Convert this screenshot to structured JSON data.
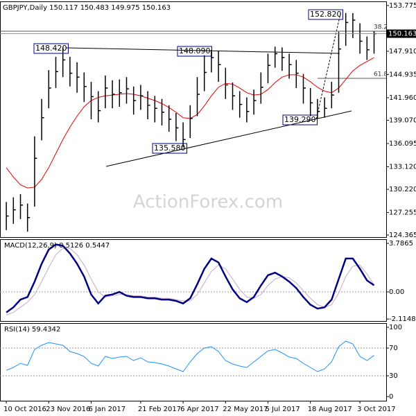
{
  "watermark": "ActionForex.com",
  "chart_data": [
    {
      "type": "ohlc",
      "title": "GBPJPY,Daily  150.117 150.483 149.975 150.163",
      "color": "#000000",
      "categories": [
        "10 Oct 2016",
        null,
        null,
        null,
        null,
        null,
        "23 Nov 2016",
        null,
        null,
        null,
        null,
        null,
        "6 Jan 2017",
        null,
        null,
        null,
        null,
        null,
        null,
        "21 Feb 2017",
        null,
        null,
        null,
        null,
        null,
        "6 Apr 2017",
        null,
        null,
        null,
        null,
        null,
        "22 May 2017",
        null,
        null,
        null,
        null,
        null,
        "5 Jul 2017",
        null,
        null,
        null,
        null,
        null,
        "18 Aug 2017",
        null,
        null,
        null,
        null,
        null,
        null,
        "3 Oct 2017",
        null,
        null
      ],
      "high": [
        128.6,
        129.2,
        129.6,
        128.4,
        137.0,
        141.8,
        145.5,
        147.2,
        148.42,
        147.2,
        146.5,
        145.2,
        144.0,
        142.8,
        144.8,
        144.2,
        144.3,
        144.6,
        143.4,
        143.6,
        142.8,
        142.2,
        141.8,
        141.0,
        140.0,
        138.8,
        141.0,
        144.6,
        147.4,
        148.09,
        148.0,
        145.8,
        143.9,
        142.8,
        142.0,
        143.0,
        145.2,
        147.6,
        148.5,
        148.4,
        147.6,
        146.8,
        145.0,
        143.2,
        141.8,
        142.0,
        144.0,
        150.4,
        152.82,
        152.8,
        151.5,
        149.8,
        150.483
      ],
      "low": [
        125.0,
        125.8,
        126.4,
        124.8,
        128.0,
        136.5,
        140.6,
        143.2,
        144.6,
        143.4,
        142.6,
        141.4,
        139.2,
        138.8,
        140.6,
        140.6,
        140.8,
        141.2,
        139.8,
        140.4,
        139.2,
        138.8,
        138.4,
        137.6,
        136.4,
        135.58,
        136.8,
        139.6,
        142.8,
        145.2,
        144.0,
        141.8,
        140.4,
        139.4,
        138.8,
        139.8,
        141.2,
        143.8,
        145.8,
        145.4,
        144.4,
        143.2,
        141.2,
        139.6,
        139.29,
        139.4,
        140.6,
        142.6,
        148.6,
        149.6,
        147.6,
        146.8,
        147.6
      ],
      "close": [
        126.8,
        127.6,
        128.2,
        126.6,
        134.2,
        139.4,
        143.2,
        145.3,
        146.8,
        145.1,
        144.6,
        143.4,
        142.1,
        140.3,
        143.2,
        142.4,
        142.6,
        143.1,
        141.6,
        142.2,
        141.0,
        140.6,
        140.1,
        139.2,
        138.1,
        136.6,
        139.3,
        142.4,
        145.2,
        147.1,
        146.2,
        143.6,
        142.2,
        141.1,
        140.2,
        141.6,
        143.3,
        146.1,
        147.6,
        147.1,
        146.2,
        145.1,
        143.2,
        141.3,
        140.2,
        140.6,
        142.3,
        148.2,
        151.6,
        151.9,
        149.2,
        148.1,
        150.163
      ],
      "ma": {
        "color": "#e00000",
        "values": [
          133.0,
          131.8,
          130.8,
          130.4,
          130.5,
          131.5,
          133.0,
          134.8,
          136.6,
          138.2,
          139.6,
          140.8,
          141.6,
          142.0,
          142.2,
          142.3,
          142.4,
          142.5,
          142.4,
          142.2,
          141.9,
          141.6,
          141.2,
          140.7,
          140.1,
          139.4,
          139.3,
          139.8,
          140.9,
          142.2,
          143.3,
          143.8,
          143.7,
          143.2,
          142.6,
          142.3,
          142.4,
          143.0,
          143.9,
          144.6,
          144.9,
          144.9,
          144.6,
          144.0,
          143.3,
          142.8,
          142.6,
          143.2,
          144.3,
          145.4,
          146.1,
          146.6,
          147.1
        ]
      },
      "ylim": [
        124.1,
        154.3
      ],
      "yticks": [
        124.365,
        127.255,
        {
          "value": 130.22,
          "label": "130.220"
        },
        {
          "value": 133.12,
          "label": "133.120"
        },
        136.095,
        {
          "value": 139.07,
          "label": "139.070"
        },
        {
          "value": 141.96,
          "label": "141.960"
        },
        144.935,
        {
          "value": 147.91,
          "label": "147.910"
        },
        153.775
      ],
      "annotations": [
        "148.420",
        "148.090",
        "135.580",
        "139.290",
        "152.820",
        "38.2",
        "61.8"
      ]
    },
    {
      "type": "macd",
      "title": "MACD(12,26,9) 0.5126 0.5447",
      "series": [
        {
          "color": "#000080",
          "values": [
            -1.6,
            -1.2,
            -0.6,
            -0.4,
            0.8,
            2.2,
            3.3,
            3.7,
            3.6,
            3.0,
            2.2,
            1.2,
            -0.2,
            -0.9,
            -0.3,
            -0.2,
            0.0,
            -0.3,
            -0.4,
            -0.4,
            -0.5,
            -0.5,
            -0.6,
            -0.6,
            -0.7,
            -0.9,
            -0.5,
            0.6,
            1.8,
            2.6,
            2.3,
            1.2,
            0.2,
            -0.5,
            -0.8,
            -0.4,
            0.5,
            1.3,
            1.5,
            1.2,
            0.8,
            0.3,
            -0.4,
            -1.0,
            -1.3,
            -1.2,
            -0.6,
            1.0,
            2.6,
            2.6,
            1.8,
            0.9,
            0.5126
          ]
        },
        {
          "color": "#c8a8c8",
          "values": [
            -1.8,
            -1.6,
            -1.2,
            -0.8,
            -0.2,
            0.8,
            1.9,
            2.9,
            3.4,
            3.4,
            2.9,
            2.1,
            1.0,
            0.0,
            -0.4,
            -0.3,
            -0.2,
            -0.2,
            -0.3,
            -0.3,
            -0.4,
            -0.4,
            -0.5,
            -0.5,
            -0.6,
            -0.7,
            -0.7,
            -0.2,
            0.7,
            1.6,
            2.1,
            1.8,
            1.0,
            0.2,
            -0.4,
            -0.5,
            -0.2,
            0.5,
            1.0,
            1.2,
            1.1,
            0.7,
            0.1,
            -0.5,
            -1.0,
            -1.2,
            -1.0,
            -0.1,
            1.2,
            2.0,
            2.1,
            1.4,
            0.5447
          ]
        }
      ],
      "ylim": [
        -2.27,
        4.11
      ],
      "yticks": [
        -2.1148,
        {
          "value": 0,
          "label": "0.00"
        },
        3.7865
      ]
    },
    {
      "type": "line",
      "title": "RSI(14) 59.4342",
      "color": "#1e90ff",
      "values": [
        38,
        42,
        48,
        45,
        68,
        74,
        78,
        76,
        74,
        65,
        62,
        58,
        48,
        44,
        58,
        55,
        57,
        58,
        52,
        56,
        50,
        49,
        47,
        44,
        40,
        36,
        50,
        62,
        70,
        72,
        65,
        52,
        47,
        44,
        42,
        50,
        58,
        66,
        68,
        63,
        57,
        55,
        48,
        42,
        36,
        40,
        50,
        72,
        80,
        76,
        58,
        52,
        59.4342
      ],
      "levels": [
        30,
        70
      ],
      "ylim": [
        -6,
        106
      ],
      "yticks": [
        0,
        30,
        70,
        100
      ]
    }
  ]
}
